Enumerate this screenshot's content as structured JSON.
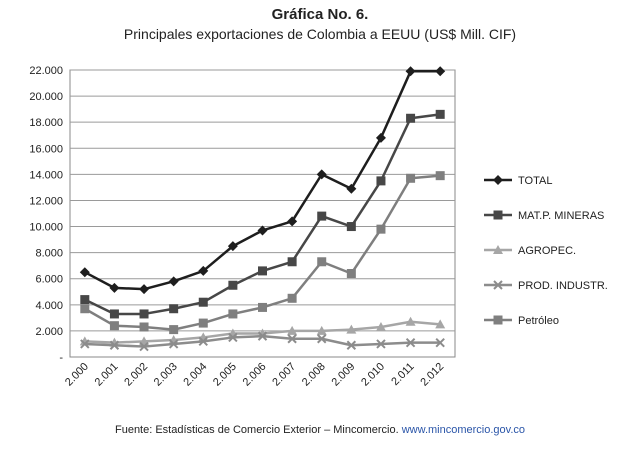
{
  "header": {
    "title": "Gráfica No. 6.",
    "subtitle": "Principales exportaciones de Colombia a EEUU (US$ Mill. CIF)"
  },
  "footer": {
    "source": "Fuente: Estadísticas de Comercio Exterior – Mincomercio.",
    "link": "www.mincomercio.gov.co"
  },
  "chart_data": {
    "type": "line",
    "title": "Gráfica No. 6.",
    "subtitle": "Principales exportaciones de Colombia a EEUU (US$ Mill. CIF)",
    "xlabel": "",
    "ylabel": "",
    "categories": [
      "2.000",
      "2.001",
      "2.002",
      "2.003",
      "2.004",
      "2.005",
      "2.006",
      "2.007",
      "2.008",
      "2.009",
      "2.010",
      "2.011",
      "2.012"
    ],
    "y_tick_labels": [
      "-",
      "2.000",
      "4.000",
      "6.000",
      "8.000",
      "10.000",
      "12.000",
      "14.000",
      "16.000",
      "18.000",
      "20.000",
      "22.000"
    ],
    "ylim": [
      0,
      22000
    ],
    "y_tick_step": 2000,
    "grid": true,
    "legend_position": "right",
    "series": [
      {
        "name": "TOTAL",
        "color": "#1e1e1e",
        "marker": "diamond",
        "values": [
          6500,
          5300,
          5200,
          5800,
          6600,
          8500,
          9700,
          10400,
          14000,
          12900,
          16800,
          21900,
          21900
        ]
      },
      {
        "name": "MAT.P. MINERAS",
        "color": "#474747",
        "marker": "square",
        "values": [
          4400,
          3300,
          3300,
          3700,
          4200,
          5500,
          6600,
          7300,
          10800,
          10000,
          13500,
          18300,
          18600
        ]
      },
      {
        "name": "AGROPEC.",
        "color": "#a6a6a6",
        "marker": "triangle",
        "values": [
          1200,
          1100,
          1200,
          1300,
          1500,
          1800,
          1800,
          2000,
          2000,
          2100,
          2300,
          2700,
          2500
        ]
      },
      {
        "name": "PROD. INDUSTR.",
        "color": "#8c8c8c",
        "marker": "x",
        "values": [
          1000,
          900,
          800,
          1000,
          1200,
          1500,
          1600,
          1400,
          1400,
          900,
          1000,
          1100,
          1100
        ]
      },
      {
        "name": "Petróleo",
        "color": "#7f7f7f",
        "marker": "square",
        "values": [
          3700,
          2400,
          2300,
          2100,
          2600,
          3300,
          3800,
          4500,
          7300,
          6400,
          9800,
          13700,
          13900
        ]
      }
    ]
  }
}
